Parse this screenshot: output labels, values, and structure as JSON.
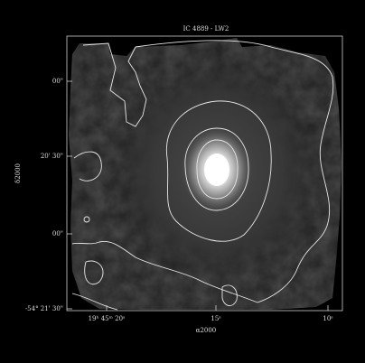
{
  "title": "IC 4889 - LW2",
  "x_axis": {
    "label": "α2000",
    "ticks": [
      "19ʰ 45ᵐ 20ˢ",
      "15ˢ",
      "10ˢ"
    ]
  },
  "y_axis": {
    "label": "δ2000",
    "ticks": [
      "00\"",
      "20' 30\"",
      "00\"",
      "-54° 21' 30\""
    ]
  }
}
